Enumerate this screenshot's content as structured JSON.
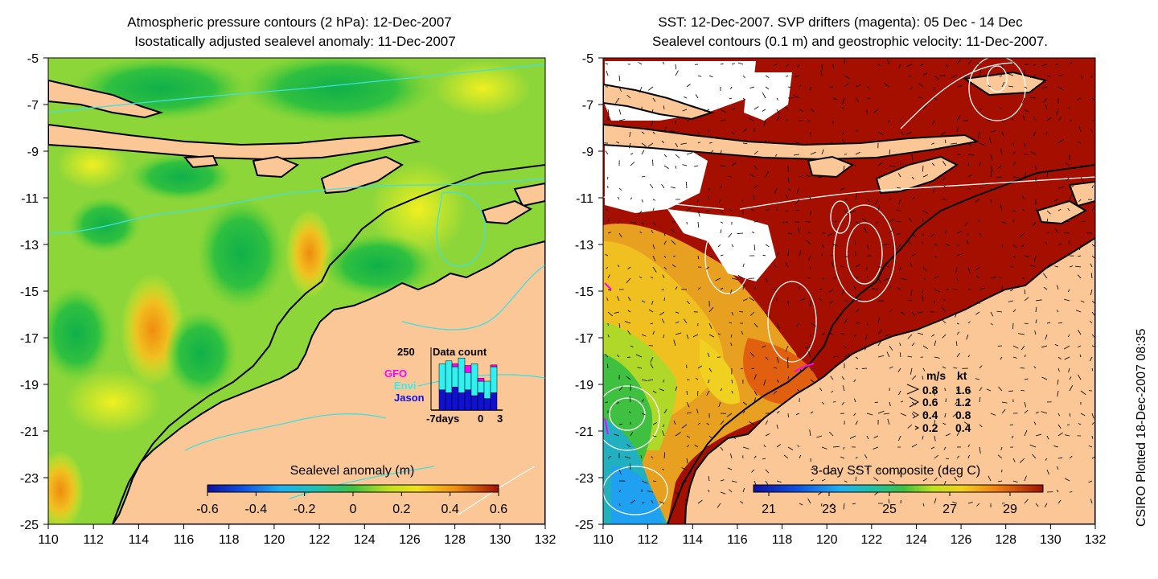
{
  "left_panel": {
    "title_line1": "Atmospheric pressure contours (2 hPa): 12-Dec-2007",
    "title_line2": "Isostatically adjusted sealevel anomaly: 11-Dec-2007",
    "x_ticks": [
      "110",
      "112",
      "114",
      "116",
      "118",
      "120",
      "122",
      "124",
      "126",
      "128",
      "130",
      "132"
    ],
    "y_ticks": [
      "-5",
      "-7",
      "-9",
      "-11",
      "-13",
      "-15",
      "-17",
      "-19",
      "-21",
      "-23",
      "-25"
    ],
    "colorbar_label": "Sealevel anomaly (m)",
    "colorbar_ticks": [
      "-0.6",
      "-0.4",
      "-0.2",
      "0",
      "0.2",
      "0.4",
      "0.6"
    ],
    "inset": {
      "title": "Data count",
      "ymax_label": "250",
      "legend": [
        "GFO",
        "Envi",
        "Jason"
      ],
      "x_label_start": "-7days",
      "x_label_zero": "0",
      "x_label_end": "3",
      "bars_jason": [
        0.0,
        0.35,
        0.3,
        0.4,
        0.3,
        0.35,
        0.25,
        0.3,
        0.2,
        0.3
      ],
      "bars_envi": [
        0.0,
        0.45,
        0.55,
        0.35,
        0.6,
        0.3,
        0.55,
        0.2,
        0.3,
        0.45
      ],
      "bars_gfo": [
        0.0,
        0.0,
        0.0,
        0.05,
        0.0,
        0.12,
        0.0,
        0.05,
        0.0,
        0.03
      ]
    }
  },
  "right_panel": {
    "title_line1": "SST: 12-Dec-2007. SVP drifters (magenta): 05 Dec - 14 Dec",
    "title_line2": "Sealevel contours (0.1 m) and geostrophic velocity: 11-Dec-2007.",
    "x_ticks": [
      "110",
      "112",
      "114",
      "116",
      "118",
      "120",
      "122",
      "124",
      "126",
      "128",
      "130",
      "132"
    ],
    "y_ticks": [
      "-5",
      "-7",
      "-9",
      "-11",
      "-13",
      "-15",
      "-17",
      "-19",
      "-21",
      "-23",
      "-25"
    ],
    "colorbar_label": "3-day SST composite (deg C)",
    "colorbar_ticks": [
      "21",
      "23",
      "25",
      "27",
      "29"
    ],
    "velocity_legend": {
      "header_ms": "m/s",
      "header_kt": "kt",
      "rows": [
        {
          "ms": "0.8",
          "kt": "1.6"
        },
        {
          "ms": "0.6",
          "kt": "1.2"
        },
        {
          "ms": "0.4",
          "kt": "0.8"
        },
        {
          "ms": "0.2",
          "kt": "0.4"
        }
      ]
    }
  },
  "credit": "CSIRO Plotted 18-Dec-2007 08:35",
  "colors": {
    "land": "#fbc797",
    "contour_cyan": "#40e0e0",
    "sst_warm": "#a50f00",
    "drifter_magenta": "#ff00ff",
    "cloud_white": "#ffffff"
  }
}
